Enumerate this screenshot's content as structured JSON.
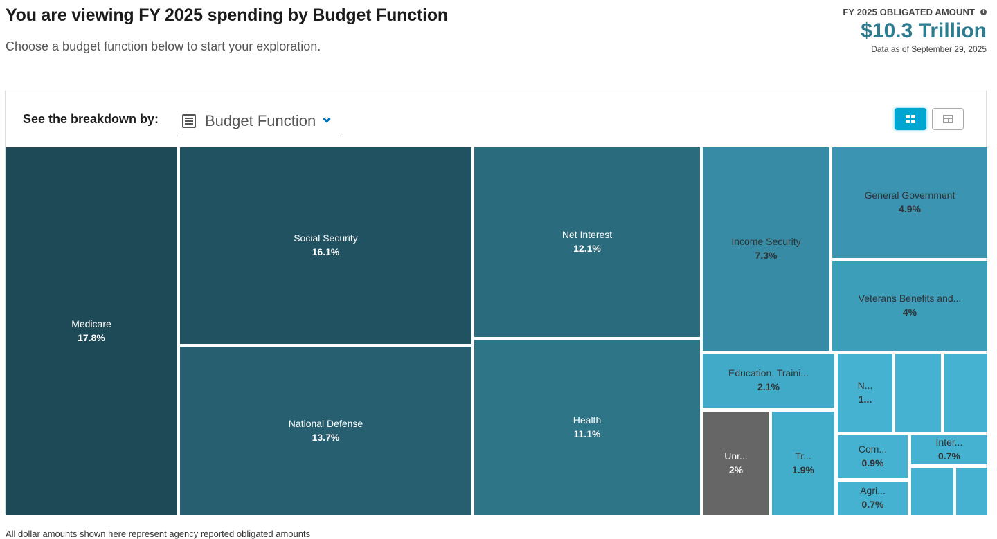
{
  "header": {
    "title": "You are viewing FY 2025 spending by Budget Function",
    "subtitle": "Choose a budget function below to start your exploration."
  },
  "summary": {
    "label": "FY 2025 OBLIGATED AMOUNT",
    "info_icon": "i",
    "value": "$10.3 Trillion",
    "as_of": "Data as of September 29, 2025"
  },
  "toolbar": {
    "breakdown_label": "See the breakdown by:",
    "selected_breakdown": "Budget Function",
    "views": [
      {
        "name": "treemap-view",
        "active": true
      },
      {
        "name": "table-view",
        "active": false
      }
    ]
  },
  "chart_data": {
    "type": "treemap",
    "title": "FY 2025 spending by Budget Function",
    "unit": "percent of total obligated amount",
    "items": [
      {
        "label": "Medicare",
        "display": "Medicare",
        "pct_label": "17.8%",
        "value": 17.8,
        "color": "#1e4a57"
      },
      {
        "label": "Social Security",
        "display": "Social Security",
        "pct_label": "16.1%",
        "value": 16.1,
        "color": "#205262"
      },
      {
        "label": "National Defense",
        "display": "National Defense",
        "pct_label": "13.7%",
        "value": 13.7,
        "color": "#275f70"
      },
      {
        "label": "Net Interest",
        "display": "Net Interest",
        "pct_label": "12.1%",
        "value": 12.1,
        "color": "#2a6c7e"
      },
      {
        "label": "Health",
        "display": "Health",
        "pct_label": "11.1%",
        "value": 11.1,
        "color": "#2e7588"
      },
      {
        "label": "Income Security",
        "display": "Income Security",
        "pct_label": "7.3%",
        "value": 7.3,
        "color": "#378ba4"
      },
      {
        "label": "General Government",
        "display": "General Government",
        "pct_label": "4.9%",
        "value": 4.9,
        "color": "#3b95b2"
      },
      {
        "label": "Veterans Benefits and Services",
        "display": "Veterans Benefits and...",
        "pct_label": "4%",
        "value": 4.0,
        "color": "#3d9eba"
      },
      {
        "label": "Education, Training, Employment, and Social Services",
        "display": "Education, Traini...",
        "pct_label": "2.1%",
        "value": 2.1,
        "color": "#41aac8"
      },
      {
        "label": "Unreported Data",
        "display": "Unr...",
        "pct_label": "2%",
        "value": 2.0,
        "color": "#666666"
      },
      {
        "label": "Transportation",
        "display": "Tr...",
        "pct_label": "1.9%",
        "value": 1.9,
        "color": "#42aecb"
      },
      {
        "label": "N...",
        "display": "N...",
        "pct_label": "1...",
        "value": null,
        "color": "#45b2d1"
      },
      {
        "label": "",
        "display": "",
        "pct_label": "",
        "value": null,
        "color": "#45b2d1"
      },
      {
        "label": "",
        "display": "",
        "pct_label": "",
        "value": null,
        "color": "#45b2d1"
      },
      {
        "label": "Commerce and Housing Credit",
        "display": "Com...",
        "pct_label": "0.9%",
        "value": 0.9,
        "color": "#45b2d1"
      },
      {
        "label": "International Affairs",
        "display": "Inter...",
        "pct_label": "0.7%",
        "value": 0.7,
        "color": "#45b2d1"
      },
      {
        "label": "Agriculture",
        "display": "Agri...",
        "pct_label": "0.7%",
        "value": 0.7,
        "color": "#45b2d1"
      },
      {
        "label": "",
        "display": "",
        "pct_label": "",
        "value": null,
        "color": "#45b2d1"
      },
      {
        "label": "",
        "display": "",
        "pct_label": "",
        "value": null,
        "color": "#45b2d1"
      }
    ]
  },
  "footer": {
    "note": "All dollar amounts shown here represent agency reported obligated amounts"
  }
}
